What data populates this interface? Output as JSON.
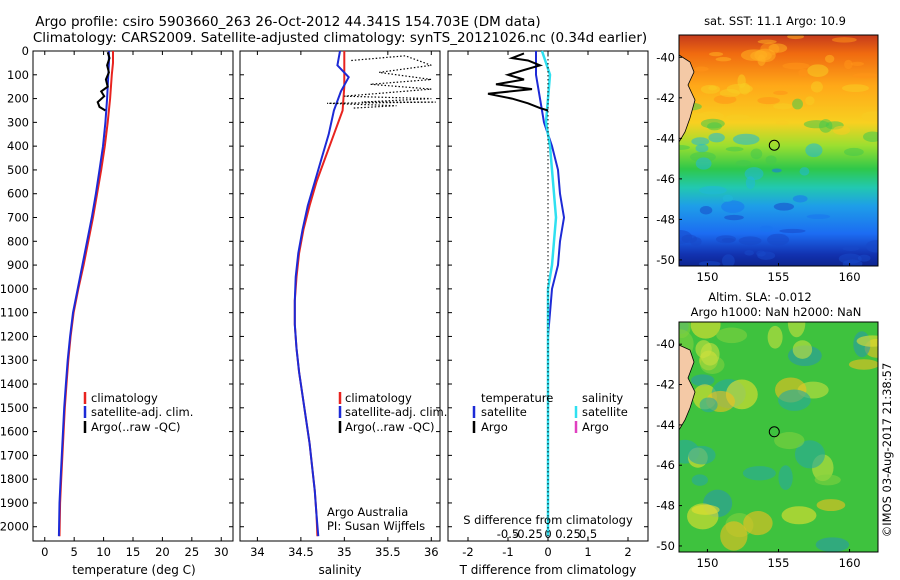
{
  "figure": {
    "title_line1": "Argo profile: csiro 5903660_263 26-Oct-2012 44.341S 154.703E (DM data)",
    "title_line2": "Climatology: CARS2009. Satellite-adjusted climatology: synTS_20121026.nc (0.34d earlier)",
    "credit": "Argo Australia",
    "pi": "PI: Susan Wijffels",
    "watermark": "©IMOS 03-Aug-2017 21:38:57",
    "colors": {
      "clim": "#e8231f",
      "sat": "#1d2ad6",
      "argo": "#000000",
      "sat_s": "#2fe0f0",
      "argo_s": "#e040c0"
    }
  },
  "chart_data": [
    {
      "type": "line",
      "name": "temperature",
      "xlabel": "temperature (deg C)",
      "ylabel": "",
      "xlim": [
        -2,
        32
      ],
      "ylim": [
        2060,
        0
      ],
      "xticks": [
        0,
        5,
        10,
        15,
        20,
        25,
        30
      ],
      "yticks": [
        0,
        100,
        200,
        300,
        400,
        500,
        600,
        700,
        800,
        900,
        1000,
        1100,
        1200,
        1300,
        1400,
        1500,
        1600,
        1700,
        1800,
        1900,
        2000
      ],
      "legend": [
        "climatology",
        "satellite-adj. clim.",
        "Argo(..raw -QC)"
      ],
      "series": [
        {
          "name": "climatology",
          "points": [
            [
              11.6,
              0
            ],
            [
              11.6,
              50
            ],
            [
              11.4,
              100
            ],
            [
              11.1,
              200
            ],
            [
              10.7,
              300
            ],
            [
              10.2,
              400
            ],
            [
              9.6,
              500
            ],
            [
              8.9,
              600
            ],
            [
              8.2,
              700
            ],
            [
              7.4,
              800
            ],
            [
              6.6,
              900
            ],
            [
              5.7,
              1000
            ],
            [
              4.9,
              1100
            ],
            [
              4.4,
              1200
            ],
            [
              4.0,
              1300
            ],
            [
              3.7,
              1400
            ],
            [
              3.4,
              1500
            ],
            [
              3.2,
              1600
            ],
            [
              3.0,
              1700
            ],
            [
              2.8,
              1800
            ],
            [
              2.6,
              1900
            ],
            [
              2.5,
              2040
            ]
          ]
        },
        {
          "name": "satellite",
          "points": [
            [
              10.9,
              0
            ],
            [
              10.9,
              50
            ],
            [
              10.8,
              100
            ],
            [
              10.6,
              200
            ],
            [
              10.3,
              300
            ],
            [
              9.9,
              400
            ],
            [
              9.3,
              500
            ],
            [
              8.7,
              600
            ],
            [
              8.0,
              700
            ],
            [
              7.2,
              800
            ],
            [
              6.4,
              900
            ],
            [
              5.6,
              1000
            ],
            [
              4.8,
              1100
            ],
            [
              4.3,
              1200
            ],
            [
              3.9,
              1300
            ],
            [
              3.6,
              1400
            ],
            [
              3.3,
              1500
            ],
            [
              3.1,
              1600
            ],
            [
              2.9,
              1700
            ],
            [
              2.7,
              1800
            ],
            [
              2.5,
              1900
            ],
            [
              2.4,
              2040
            ]
          ]
        },
        {
          "name": "argo",
          "points": [
            [
              10.7,
              5
            ],
            [
              11.0,
              30
            ],
            [
              10.6,
              60
            ],
            [
              10.9,
              90
            ],
            [
              10.4,
              120
            ],
            [
              10.7,
              150
            ],
            [
              9.6,
              170
            ],
            [
              10.1,
              190
            ],
            [
              9.0,
              215
            ],
            [
              9.3,
              235
            ],
            [
              10.3,
              250
            ]
          ]
        }
      ]
    },
    {
      "type": "line",
      "name": "salinity",
      "xlabel": "salinity",
      "xlim": [
        33.8,
        36.1
      ],
      "ylim": [
        2060,
        0
      ],
      "xticks": [
        34,
        34.5,
        35,
        35.5,
        36
      ],
      "xticklabels": [
        "34",
        "34.5",
        "35",
        "35.5",
        "36"
      ],
      "legend": [
        "climatology",
        "satellite-adj. clim.",
        "Argo(..raw -QC)"
      ],
      "series": [
        {
          "name": "climatology",
          "points": [
            [
              35.0,
              0
            ],
            [
              35.0,
              80
            ],
            [
              35.0,
              150
            ],
            [
              34.98,
              250
            ],
            [
              34.88,
              350
            ],
            [
              34.78,
              450
            ],
            [
              34.68,
              550
            ],
            [
              34.6,
              650
            ],
            [
              34.53,
              750
            ],
            [
              34.48,
              850
            ],
            [
              34.45,
              950
            ],
            [
              34.43,
              1050
            ],
            [
              34.43,
              1150
            ],
            [
              34.45,
              1250
            ],
            [
              34.48,
              1350
            ],
            [
              34.52,
              1450
            ],
            [
              34.56,
              1550
            ],
            [
              34.6,
              1650
            ],
            [
              34.63,
              1750
            ],
            [
              34.66,
              1850
            ],
            [
              34.68,
              1950
            ],
            [
              34.69,
              2040
            ]
          ]
        },
        {
          "name": "satellite",
          "points": [
            [
              34.95,
              0
            ],
            [
              34.92,
              60
            ],
            [
              35.05,
              110
            ],
            [
              34.96,
              170
            ],
            [
              34.88,
              250
            ],
            [
              34.82,
              350
            ],
            [
              34.74,
              450
            ],
            [
              34.66,
              550
            ],
            [
              34.58,
              650
            ],
            [
              34.52,
              750
            ],
            [
              34.47,
              850
            ],
            [
              34.44,
              950
            ],
            [
              34.43,
              1050
            ],
            [
              34.43,
              1150
            ],
            [
              34.45,
              1250
            ],
            [
              34.48,
              1350
            ],
            [
              34.52,
              1450
            ],
            [
              34.56,
              1550
            ],
            [
              34.6,
              1650
            ],
            [
              34.63,
              1750
            ],
            [
              34.66,
              1850
            ],
            [
              34.68,
              1950
            ],
            [
              34.7,
              2040
            ]
          ]
        },
        {
          "name": "argo",
          "points": [
            [
              35.08,
              40
            ],
            [
              35.7,
              20
            ],
            [
              36.0,
              60
            ],
            [
              35.4,
              90
            ],
            [
              36.0,
              120
            ],
            [
              35.3,
              140
            ],
            [
              36.0,
              160
            ],
            [
              35.0,
              190
            ],
            [
              36.0,
              200
            ],
            [
              35.2,
              215
            ],
            [
              36.05,
              215
            ],
            [
              34.8,
              220
            ],
            [
              35.6,
              230
            ],
            [
              35.1,
              240
            ]
          ]
        }
      ]
    },
    {
      "type": "line",
      "name": "difference",
      "xlabel": "T difference from climatology",
      "toplabel": "S difference from climatology",
      "xlim": [
        -2.5,
        2.5
      ],
      "ylim": [
        2060,
        0
      ],
      "xticks": [
        -2,
        -1,
        0,
        1,
        2
      ],
      "xticklabels": [
        "-2",
        "-1",
        "0",
        "1",
        "2"
      ],
      "sticks": [
        -1,
        -0.5,
        0,
        0.5,
        1
      ],
      "sticklabels": [
        "-0.5",
        "-0.25",
        "0",
        "0.25",
        "0.5"
      ],
      "legend_t_title": "temperature",
      "legend_s_title": "salinity",
      "legend_t": [
        "satellite",
        "Argo"
      ],
      "legend_s": [
        "satellite",
        "Argo"
      ],
      "series": [
        {
          "name": "T satellite",
          "points": [
            [
              -0.3,
              0
            ],
            [
              -0.3,
              50
            ],
            [
              -0.3,
              100
            ],
            [
              -0.2,
              200
            ],
            [
              -0.1,
              300
            ],
            [
              0.1,
              400
            ],
            [
              0.25,
              500
            ],
            [
              0.3,
              600
            ],
            [
              0.4,
              700
            ],
            [
              0.3,
              800
            ],
            [
              0.25,
              900
            ],
            [
              0.1,
              1000
            ],
            [
              0.05,
              1100
            ],
            [
              0.0,
              1200
            ],
            [
              0.0,
              1400
            ],
            [
              0.0,
              1700
            ],
            [
              0.0,
              2040
            ]
          ]
        },
        {
          "name": "S satellite",
          "points": [
            [
              -0.15,
              0
            ],
            [
              -0.05,
              50
            ],
            [
              0.05,
              100
            ],
            [
              0.0,
              200
            ],
            [
              -0.05,
              300
            ],
            [
              0.05,
              400
            ],
            [
              0.1,
              500
            ],
            [
              0.15,
              600
            ],
            [
              0.2,
              700
            ],
            [
              0.15,
              800
            ],
            [
              0.1,
              900
            ],
            [
              0.0,
              1000
            ],
            [
              0.0,
              1200
            ],
            [
              0.0,
              2040
            ]
          ]
        },
        {
          "name": "T argo",
          "points": [
            [
              -0.6,
              10
            ],
            [
              -0.9,
              30
            ],
            [
              -0.5,
              40
            ],
            [
              -0.2,
              60
            ],
            [
              -0.6,
              80
            ],
            [
              -1.0,
              100
            ],
            [
              -0.6,
              120
            ],
            [
              -1.3,
              140
            ],
            [
              -0.4,
              160
            ],
            [
              -1.5,
              180
            ],
            [
              -0.9,
              200
            ],
            [
              -0.5,
              220
            ],
            [
              -0.2,
              240
            ],
            [
              0.0,
              250
            ]
          ]
        },
        {
          "name": "zero",
          "points": [
            [
              0,
              0
            ],
            [
              0,
              2040
            ]
          ]
        }
      ]
    },
    {
      "type": "heatmap",
      "name": "sst_map",
      "title": "sat. SST: 11.1  Argo: 10.9",
      "xlim": [
        148,
        162
      ],
      "ylim": [
        -50.3,
        -38.9
      ],
      "xticks": [
        150,
        155,
        160
      ],
      "yticks": [
        -40,
        -42,
        -44,
        -46,
        -48,
        -50
      ],
      "marker": [
        154.703,
        -44.341
      ]
    },
    {
      "type": "heatmap",
      "name": "sla_map",
      "title1": "Altim. SLA: -0.012",
      "title2": "Argo h1000: NaN h2000: NaN",
      "xlim": [
        148,
        162
      ],
      "ylim": [
        -50.3,
        -38.9
      ],
      "xticks": [
        150,
        155,
        160
      ],
      "yticks": [
        -40,
        -42,
        -44,
        -46,
        -48,
        -50
      ],
      "marker": [
        154.703,
        -44.341
      ]
    }
  ]
}
